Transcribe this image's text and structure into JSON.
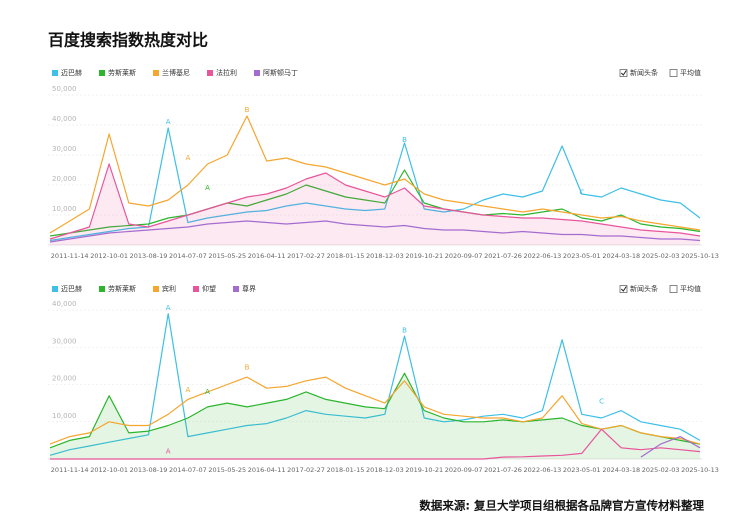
{
  "title": "百度搜索指数热度对比",
  "source": "数据来源: 复旦大学项目组根据各品牌官方宣传材料整理",
  "chart_data": [
    {
      "type": "line",
      "categories": [
        null,
        "2011-11-14",
        null,
        "2012-10-01",
        null,
        "2013-08-19",
        null,
        "2014-07-07",
        null,
        "2015-05-25",
        null,
        "2016-04-11",
        null,
        "2017-02-27",
        null,
        "2018-01-15",
        null,
        "2018-12-03",
        null,
        "2019-10-21",
        null,
        "2020-09-07",
        null,
        "2021-07-26",
        null,
        "2022-06-13",
        null,
        "2023-05-01",
        null,
        "2024-03-18",
        null,
        "2025-02-03",
        null,
        "2025-10-13"
      ],
      "ylim": [
        0,
        50000
      ],
      "yticks": [
        {
          "value": 10000,
          "label": "10,000"
        },
        {
          "value": 20000,
          "label": "20,000"
        },
        {
          "value": 30000,
          "label": "30,000"
        },
        {
          "value": 40000,
          "label": "40,000"
        },
        {
          "value": 50000,
          "label": "50,000"
        }
      ],
      "grid": true,
      "toggles": [
        {
          "label": "新闻头条",
          "checked": true
        },
        {
          "label": "平均值",
          "checked": false
        }
      ],
      "series": [
        {
          "name": "迈巴赫",
          "color": "#3dbfe8",
          "values": [
            1500,
            2500,
            3500,
            4500,
            5500,
            6000,
            39000,
            7500,
            9000,
            10000,
            11000,
            11500,
            13000,
            14000,
            13000,
            12000,
            11500,
            12000,
            34000,
            12000,
            11000,
            12000,
            15000,
            17000,
            16000,
            18000,
            33000,
            17000,
            16000,
            19000,
            17000,
            15000,
            14000,
            9000
          ]
        },
        {
          "name": "劳斯莱斯",
          "color": "#2cb52c",
          "values": [
            3000,
            4000,
            5000,
            6000,
            6500,
            7000,
            9000,
            10000,
            12000,
            14000,
            13000,
            15000,
            17000,
            20000,
            18000,
            16000,
            15000,
            14000,
            25000,
            14000,
            12000,
            11000,
            10000,
            10500,
            10000,
            11000,
            12000,
            9000,
            8000,
            10000,
            7000,
            6000,
            5500,
            4500
          ]
        },
        {
          "name": "兰博基尼",
          "color": "#f5a62f",
          "values": [
            4000,
            8000,
            12000,
            37000,
            14000,
            13000,
            15000,
            20000,
            27000,
            30000,
            43000,
            28000,
            29000,
            27000,
            26000,
            24000,
            22000,
            20000,
            22000,
            17000,
            15000,
            14000,
            13000,
            12000,
            11000,
            12000,
            11000,
            10000,
            9000,
            9500,
            8000,
            7000,
            6000,
            5000
          ]
        },
        {
          "name": "法拉利",
          "color": "#e8559b",
          "area": true,
          "values": [
            2000,
            4000,
            6000,
            27000,
            7000,
            6000,
            8000,
            10000,
            12000,
            14000,
            16000,
            17000,
            19000,
            22000,
            24000,
            20000,
            18000,
            16000,
            19000,
            13000,
            12000,
            11000,
            10000,
            9500,
            9000,
            9000,
            8500,
            8000,
            7000,
            6000,
            5000,
            4500,
            4000,
            3000
          ]
        },
        {
          "name": "阿斯顿马丁",
          "color": "#a56ccf",
          "values": [
            1000,
            2000,
            3000,
            4000,
            4500,
            5000,
            5500,
            6000,
            7000,
            7500,
            8000,
            7500,
            7000,
            7500,
            8000,
            7000,
            6500,
            6000,
            6500,
            5500,
            5000,
            5000,
            4500,
            4000,
            4500,
            4000,
            3500,
            3500,
            3000,
            3000,
            2500,
            2000,
            2000,
            1500
          ]
        }
      ],
      "annotations": [
        {
          "text": "A",
          "color": "#3dbfe8",
          "x": 6,
          "y": 41000
        },
        {
          "text": "A",
          "color": "#f5a62f",
          "x": 7,
          "y": 29000
        },
        {
          "text": "A",
          "color": "#2cb52c",
          "x": 8,
          "y": 19000
        },
        {
          "text": "B",
          "color": "#f5a62f",
          "x": 10,
          "y": 45000
        },
        {
          "text": "B",
          "color": "#3dbfe8",
          "x": 18,
          "y": 35000
        },
        {
          "text": "C",
          "color": "#3dbfe8",
          "x": 27,
          "y": 17500
        }
      ]
    },
    {
      "type": "line",
      "categories": [
        null,
        "2011-11-14",
        null,
        "2012-10-01",
        null,
        "2013-08-19",
        null,
        "2014-07-07",
        null,
        "2015-05-25",
        null,
        "2016-04-11",
        null,
        "2017-02-27",
        null,
        "2018-01-15",
        null,
        "2018-12-03",
        null,
        "2019-10-21",
        null,
        "2020-09-07",
        null,
        "2021-07-26",
        null,
        "2022-06-13",
        null,
        "2023-05-01",
        null,
        "2024-03-18",
        null,
        "2025-02-03",
        null,
        "2025-10-13"
      ],
      "ylim": [
        0,
        40000
      ],
      "yticks": [
        {
          "value": 10000,
          "label": "10,000"
        },
        {
          "value": 20000,
          "label": "20,000"
        },
        {
          "value": 30000,
          "label": "30,000"
        },
        {
          "value": 40000,
          "label": "40,000"
        }
      ],
      "grid": true,
      "toggles": [
        {
          "label": "新闻头条",
          "checked": true
        },
        {
          "label": "平均值",
          "checked": false
        }
      ],
      "series": [
        {
          "name": "迈巴赫",
          "color": "#3dbfe8",
          "values": [
            1000,
            2500,
            3500,
            4500,
            5500,
            6500,
            39000,
            6000,
            7000,
            8000,
            9000,
            9500,
            11000,
            13000,
            12000,
            11500,
            11000,
            12000,
            33000,
            11000,
            10000,
            10500,
            11500,
            12000,
            11000,
            13000,
            32000,
            12000,
            11000,
            13000,
            10000,
            9000,
            8000,
            5000
          ]
        },
        {
          "name": "劳斯莱斯",
          "color": "#2cb52c",
          "area": true,
          "values": [
            3000,
            5000,
            6000,
            17000,
            7000,
            7500,
            9000,
            11000,
            14000,
            15000,
            14000,
            15000,
            16000,
            18000,
            16000,
            15000,
            14000,
            13500,
            23000,
            13000,
            11000,
            10000,
            10000,
            10500,
            10000,
            10500,
            11000,
            9000,
            8000,
            9000,
            7000,
            6000,
            5000,
            4000
          ]
        },
        {
          "name": "宾利",
          "color": "#f5a62f",
          "values": [
            4000,
            6000,
            7000,
            10000,
            9000,
            9000,
            12000,
            16000,
            18000,
            20000,
            22000,
            19000,
            19500,
            21000,
            22000,
            19000,
            17000,
            15000,
            21000,
            14000,
            12000,
            11500,
            11000,
            11000,
            10000,
            11000,
            17000,
            9500,
            8000,
            9000,
            7000,
            6000,
            5500,
            4000
          ]
        },
        {
          "name": "仰望",
          "color": "#e8559b",
          "values": [
            0,
            0,
            0,
            0,
            0,
            0,
            0,
            0,
            0,
            0,
            0,
            0,
            0,
            0,
            0,
            0,
            0,
            0,
            0,
            0,
            0,
            0,
            0,
            500,
            600,
            800,
            1000,
            1500,
            8000,
            3000,
            2500,
            3000,
            2500,
            2000
          ]
        },
        {
          "name": "尊界",
          "color": "#a56ccf",
          "values": [
            null,
            null,
            null,
            null,
            null,
            null,
            null,
            null,
            null,
            null,
            null,
            null,
            null,
            null,
            null,
            null,
            null,
            null,
            null,
            null,
            null,
            null,
            null,
            null,
            null,
            null,
            null,
            null,
            null,
            null,
            500,
            4000,
            6000,
            3000
          ]
        }
      ],
      "annotations": [
        {
          "text": "A",
          "color": "#3dbfe8",
          "x": 6,
          "y": 40500
        },
        {
          "text": "A",
          "color": "#e8559b",
          "x": 6,
          "y": 2000
        },
        {
          "text": "A",
          "color": "#f5a62f",
          "x": 7,
          "y": 18500
        },
        {
          "text": "A",
          "color": "#2cb52c",
          "x": 8,
          "y": 18000
        },
        {
          "text": "B",
          "color": "#f5a62f",
          "x": 10,
          "y": 24500
        },
        {
          "text": "B",
          "color": "#3dbfe8",
          "x": 18,
          "y": 34500
        },
        {
          "text": "C",
          "color": "#3dbfe8",
          "x": 28,
          "y": 15500
        }
      ]
    }
  ]
}
